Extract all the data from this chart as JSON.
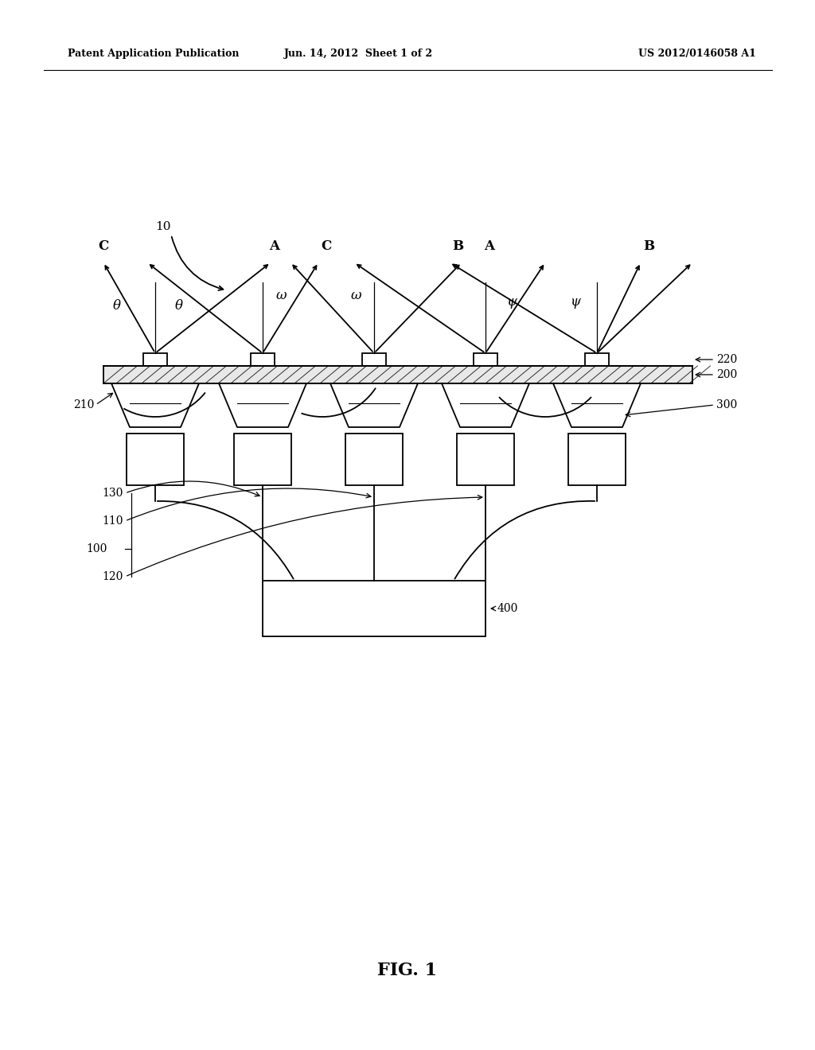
{
  "bg_color": "#ffffff",
  "line_color": "#000000",
  "header_left": "Patent Application Publication",
  "header_center": "Jun. 14, 2012  Sheet 1 of 2",
  "header_right": "US 2012/0146058 A1",
  "figure_label": "FIG. 1",
  "ref_10": "10",
  "ref_100": "100",
  "ref_110": "110",
  "ref_120": "120",
  "ref_130": "130",
  "ref_200": "200",
  "ref_210": "210",
  "ref_220": "220",
  "ref_300": "300",
  "ref_400": "400",
  "angle_theta": "θ",
  "angle_omega": "ω",
  "angle_psi": "ψ"
}
